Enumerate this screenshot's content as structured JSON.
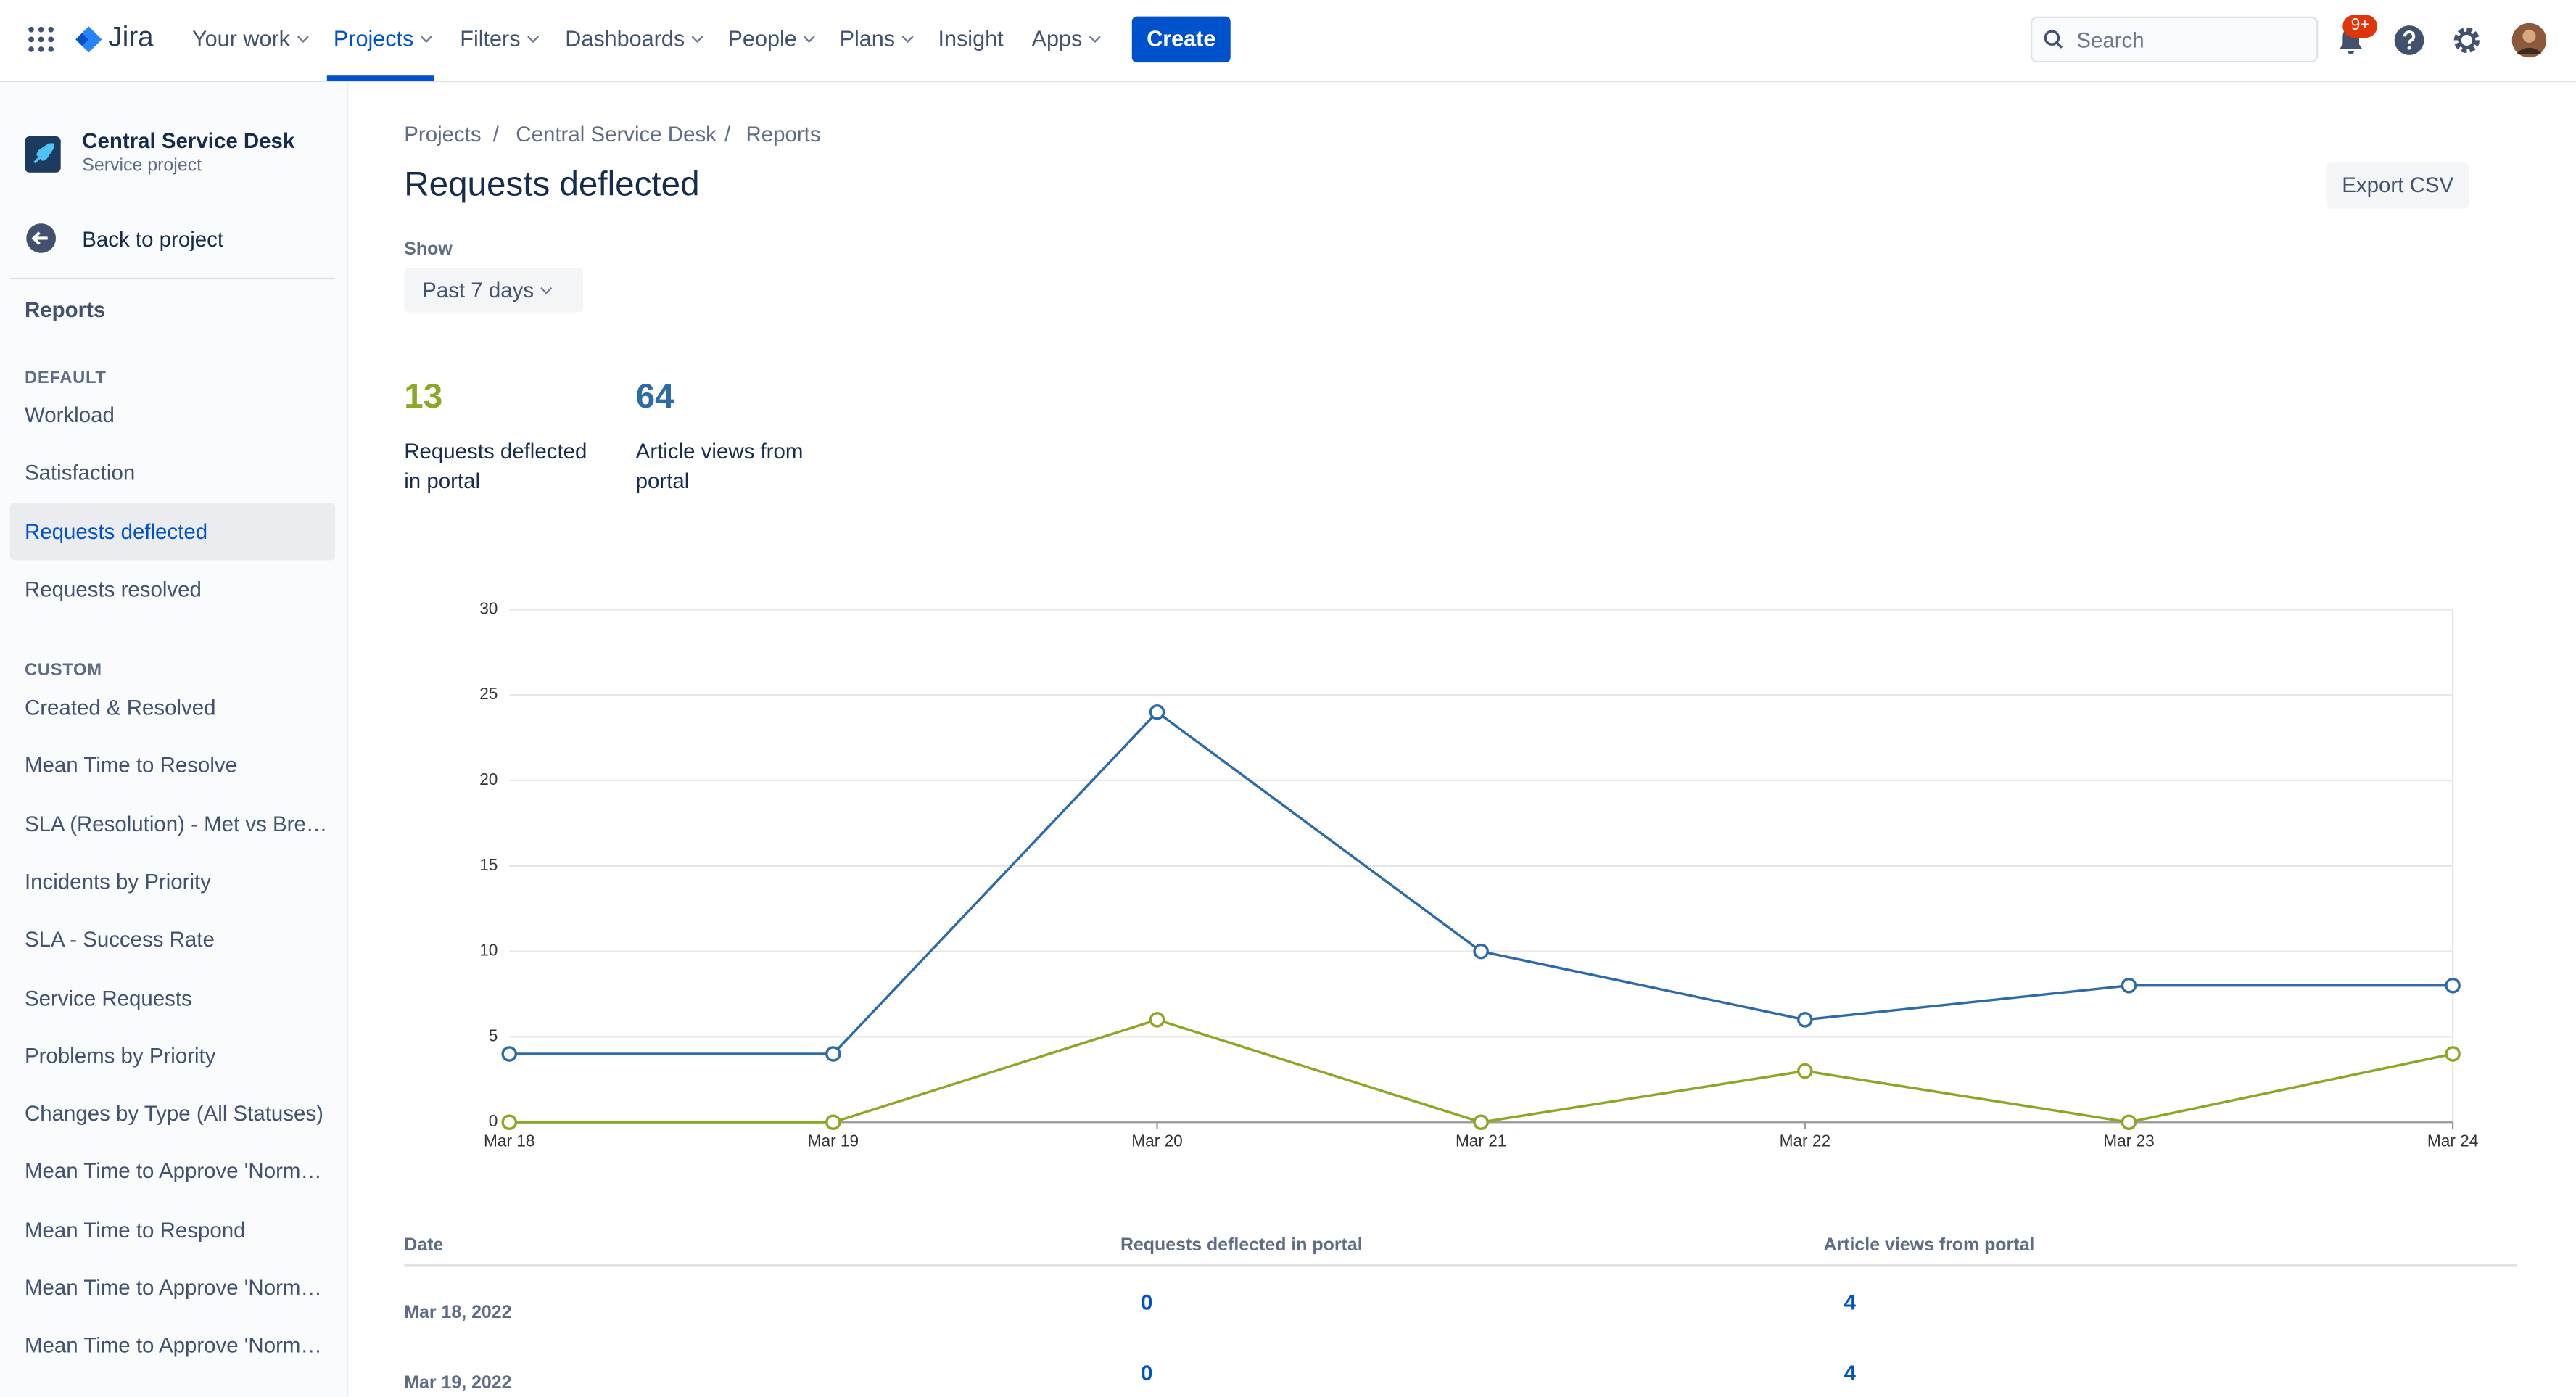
{
  "nav": {
    "product": "Jira",
    "items": [
      "Your work",
      "Projects",
      "Filters",
      "Dashboards",
      "People",
      "Plans",
      "Insight",
      "Apps"
    ],
    "create": "Create",
    "search": "Search",
    "notifications": "9+"
  },
  "sidebar": {
    "project": "Central Service Desk",
    "project_type": "Service project",
    "back": "Back to project",
    "section": "Reports",
    "groups": [
      {
        "title": "DEFAULT",
        "items": [
          "Workload",
          "Satisfaction",
          "Requests deflected",
          "Requests resolved"
        ]
      },
      {
        "title": "CUSTOM",
        "items": [
          "Created & Resolved",
          "Mean Time to Resolve",
          "SLA (Resolution) - Met vs Bre…",
          "Incidents by Priority",
          "SLA - Success Rate",
          "Service Requests",
          "Problems by Priority",
          "Changes by Type (All Statuses)",
          "Mean Time to Approve 'Norm…",
          "Mean Time to Respond",
          "Mean Time to Approve 'Norm…",
          "Mean Time to Approve 'Norm…"
        ]
      }
    ]
  },
  "breadcrumbs": [
    "Projects",
    "Central Service Desk",
    "Reports"
  ],
  "title": "Requests deflected",
  "export": "Export CSV",
  "filter_label": "Show",
  "filter_value": "Past 7 days",
  "stats": [
    {
      "value": 13,
      "label": "Requests deflected in portal"
    },
    {
      "value": 64,
      "label": "Article views from portal"
    }
  ],
  "chart_data": {
    "type": "line",
    "categories": [
      "Mar 18",
      "Mar 19",
      "Mar 20",
      "Mar 21",
      "Mar 22",
      "Mar 23",
      "Mar 24"
    ],
    "series": [
      {
        "color": "#2d6aa8",
        "values": [
          4,
          4,
          24,
          10,
          6,
          8,
          8
        ]
      },
      {
        "color": "#8aa825",
        "values": [
          0,
          0,
          6,
          0,
          3,
          0,
          4
        ]
      }
    ],
    "ylim": [
      0,
      30
    ],
    "yticks": [
      0,
      5,
      10,
      15,
      20,
      25,
      30
    ],
    "grid": true
  },
  "table": {
    "headers": [
      "Date",
      "Requests deflected in portal",
      "Article views from portal"
    ],
    "rows": [
      [
        "Mar 18, 2022",
        0,
        4
      ],
      [
        "Mar 19, 2022",
        0,
        4
      ]
    ]
  }
}
